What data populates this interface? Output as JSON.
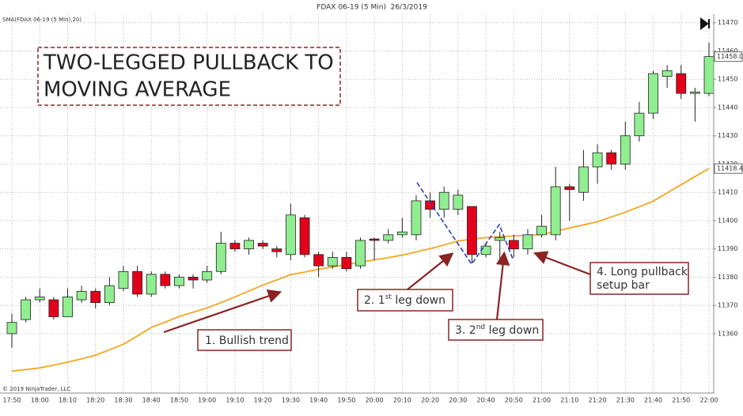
{
  "chart_data": {
    "type": "candlestick",
    "title": "FDAX 06-19 (5 Min)  26/3/2019",
    "indicator_label": "SMA(FDAX 06-19 (5 Min),20)",
    "copyright": "© 2019 NinjaTrader, LLC",
    "categories": [
      "17:50",
      null,
      "18:00",
      null,
      "18:10",
      null,
      "18:20",
      null,
      "18:30",
      null,
      "18:40",
      null,
      "18:50",
      null,
      "19:00",
      null,
      "19:10",
      null,
      "19:20",
      null,
      "19:30",
      null,
      "19:40",
      null,
      "19:50",
      null,
      "20:00",
      null,
      "20:10",
      null,
      "20:20",
      null,
      "20:30",
      null,
      "20:40",
      null,
      "20:50",
      null,
      "21:00",
      null,
      "21:10",
      null,
      "21:20",
      null,
      "21:30",
      null,
      "21:40",
      null,
      "21:50",
      null,
      "22:00"
    ],
    "open": [
      11360,
      11365,
      11372,
      11372,
      11366,
      11372,
      11375,
      11371,
      11376,
      11382,
      11374,
      11381,
      11377,
      11380,
      11379,
      11382,
      11392,
      11390,
      11392,
      11390,
      11388,
      11401,
      11388,
      11384,
      11387,
      11384,
      11393.5,
      11393,
      11395,
      11395,
      11407,
      11404,
      11404,
      11405,
      11388,
      11393,
      11393,
      11390,
      11395,
      11395,
      11412,
      11410,
      11419,
      11424,
      11420,
      11430,
      11438,
      11451,
      11452,
      11445,
      11445
    ],
    "high": [
      11367,
      11373,
      11376,
      11373,
      11376,
      11377,
      11376,
      11380,
      11384,
      11384,
      11382,
      11382,
      11381,
      11381,
      11384,
      11396,
      11393,
      11394,
      11393,
      11391,
      11406,
      11402,
      11389,
      11389,
      11389,
      11394,
      11394,
      11397,
      11401,
      11409,
      11410,
      11412,
      11411,
      11405,
      11392,
      11396,
      11395,
      11397,
      11402,
      11419,
      11413,
      11425,
      11427,
      11425,
      11435,
      11442,
      11453,
      11455,
      11455,
      11447,
      11463
    ],
    "low": [
      11355,
      11364,
      11371,
      11365,
      11366,
      11371,
      11369,
      11370,
      11375,
      11373,
      11373,
      11376,
      11376,
      11376,
      11378,
      11381,
      11389,
      11388,
      11390,
      11387,
      11386,
      11387,
      11380,
      11383,
      11382,
      11383,
      11386,
      11392,
      11394,
      11393,
      11401,
      11401,
      11402,
      11385,
      11387,
      11386,
      11387,
      11388,
      11394,
      11393,
      11400,
      11407,
      11413,
      11418,
      11418,
      11428,
      11436,
      11447,
      11443,
      11435,
      11444
    ],
    "close": [
      11364,
      11372,
      11373,
      11366,
      11373,
      11375,
      11371,
      11377,
      11382,
      11374,
      11381,
      11377,
      11380,
      11379,
      11382,
      11392,
      11390,
      11393,
      11391,
      11389,
      11402,
      11388,
      11384,
      11387,
      11383,
      11393,
      11393,
      11395,
      11396,
      11407,
      11404,
      11410,
      11409,
      11388,
      11391,
      11394,
      11390,
      11395,
      11398,
      11412,
      11411,
      11419,
      11424,
      11420,
      11430,
      11438,
      11452,
      11453,
      11445,
      11445.5,
      11458
    ],
    "up_color": "#90ee90",
    "down_color": "#e3001b",
    "sma": {
      "color": "#f5a623",
      "values": [
        11346.8,
        11347.3,
        11347.9,
        11348.9,
        11349.9,
        11351.1,
        11352.4,
        11354.3,
        11356.3,
        11359.2,
        11362.2,
        11364.1,
        11366.1,
        11367.6,
        11369.1,
        11371.0,
        11373.0,
        11375.1,
        11377.2,
        11379.0,
        11380.9,
        11381.8,
        11382.8,
        11383.6,
        11384.5,
        11385.3,
        11386.1,
        11386.9,
        11387.8,
        11388.9,
        11390.1,
        11391.4,
        11392.8,
        11393.4,
        11394.0,
        11394.3,
        11394.6,
        11394.8,
        11395.1,
        11396.2,
        11397.4,
        11398.5,
        11399.6,
        11401.3,
        11403.0,
        11404.9,
        11406.9,
        11409.8,
        11412.7,
        11415.6,
        11418.4
      ]
    },
    "ylim": [
      11339,
      11473
    ],
    "yticks": [
      11360,
      11370,
      11380,
      11390,
      11400,
      11410,
      11420,
      11430,
      11440,
      11450,
      11460,
      11470
    ],
    "grid": true,
    "price_markers": [
      {
        "value": 11458,
        "label": "11458.0"
      },
      11418.4
    ],
    "annotations": {
      "headline": [
        "TWO-LEGGED PULLBACK TO",
        "MOVING AVERAGE"
      ],
      "label1": "1. Bullish trend",
      "label2": [
        "2. 1",
        "st",
        " leg down"
      ],
      "label3": [
        "3. 2",
        "nd",
        " leg down"
      ],
      "label4": [
        "4. Long pullback",
        "setup bar"
      ]
    }
  }
}
